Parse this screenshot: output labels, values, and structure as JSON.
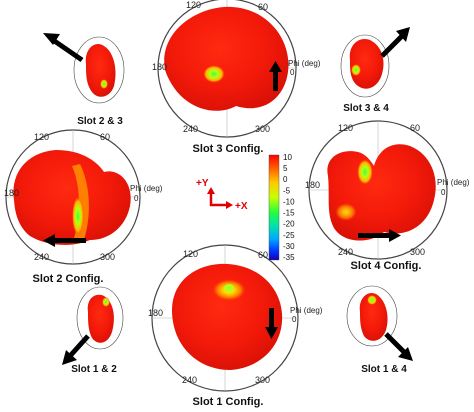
{
  "panels": [
    {
      "id": "slot3",
      "caption": "Slot 3 Config.",
      "ticks": {
        "t120": "120",
        "t60": "60",
        "t180": "180",
        "t240": "240",
        "t300": "300",
        "phi": "Phi (deg)",
        "zero": "0"
      }
    },
    {
      "id": "slot2",
      "caption": "Slot 2 Config.",
      "ticks": {
        "t120": "120",
        "t60": "60",
        "t180": "180",
        "t240": "240",
        "t300": "300",
        "phi": "Phi (deg)",
        "zero": "0"
      }
    },
    {
      "id": "slot4",
      "caption": "Slot 4 Config.",
      "ticks": {
        "t120": "120",
        "t60": "60",
        "t180": "180",
        "t240": "240",
        "t300": "300",
        "phi": "Phi (deg)",
        "zero": "0"
      }
    },
    {
      "id": "slot1",
      "caption": "Slot 1 Config.",
      "ticks": {
        "t120": "120",
        "t60": "60",
        "t180": "180",
        "t240": "240",
        "t300": "300",
        "phi": "Phi (deg)",
        "zero": "0"
      }
    },
    {
      "id": "slot23",
      "caption": "Slot 2 & 3"
    },
    {
      "id": "slot34",
      "caption": "Slot 3 & 4"
    },
    {
      "id": "slot12",
      "caption": "Slot 1 & 2"
    },
    {
      "id": "slot14",
      "caption": "Slot 1 & 4"
    }
  ],
  "axes": {
    "y_label": "+Y",
    "x_label": "+X"
  },
  "colorbar": {
    "ticks": [
      "10",
      "5",
      "0",
      "-5",
      "-10",
      "-15",
      "-20",
      "-25",
      "-30",
      "-35"
    ],
    "colors": [
      "#ff0000",
      "#ff4000",
      "#ff8c00",
      "#ffd200",
      "#d6ff00",
      "#6fff1e",
      "#00e08a",
      "#00b9e6",
      "#005cff",
      "#1a00c8"
    ]
  }
}
